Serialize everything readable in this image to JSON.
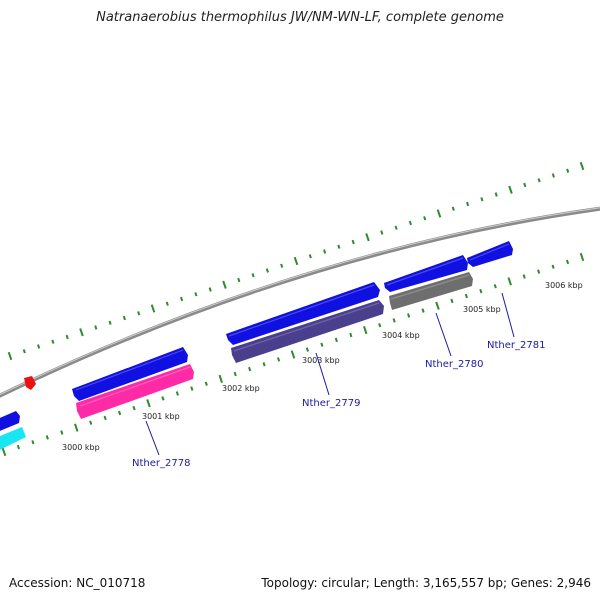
{
  "title": "Natranaerobius thermophilus JW/NM-WN-LF, complete genome",
  "footer": {
    "accession": "Accession: NC_010718",
    "summary": "Topology: circular; Length: 3,165,557 bp; Genes: 2,946"
  },
  "colors": {
    "background": "#ffffff",
    "genome_line": "#8a8a8a",
    "tick": "#2e8b2e",
    "gene_blue": "#1010e0",
    "gene_magenta": "#ff2aa6",
    "gene_slate": "#4a3f8c",
    "gene_gray": "#6e6e6e",
    "gene_cyan": "#19e6f0",
    "marker_red": "#ee1111",
    "label_line": "#1a1aa8"
  },
  "tick_labels": [
    {
      "kbp": 3000,
      "text": "3000 kbp"
    },
    {
      "kbp": 3001,
      "text": "3001 kbp"
    },
    {
      "kbp": 3002,
      "text": "3002 kbp"
    },
    {
      "kbp": 3003,
      "text": "3003 kbp"
    },
    {
      "kbp": 3004,
      "text": "3004 kbp"
    },
    {
      "kbp": 3005,
      "text": "3005 kbp"
    },
    {
      "kbp": 3006,
      "text": "3006 kbp"
    }
  ],
  "genes": [
    {
      "name": "Nther_2778"
    },
    {
      "name": "Nther_2779"
    },
    {
      "name": "Nther_2780"
    },
    {
      "name": "Nther_2781"
    }
  ]
}
